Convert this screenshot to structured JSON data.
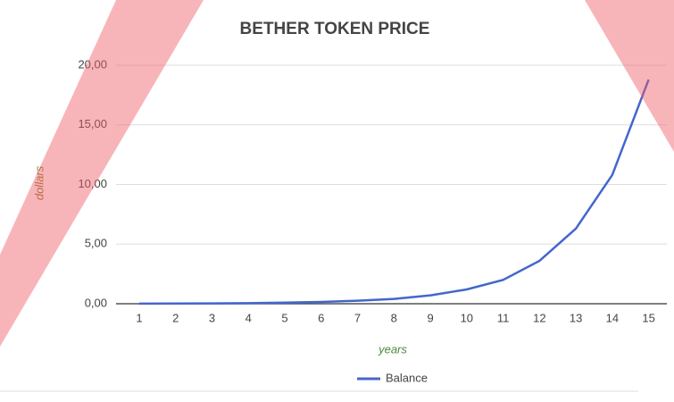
{
  "chart_data": {
    "type": "line",
    "title": "BETHER TOKEN PRICE",
    "x_label": "years",
    "y_label": "dollars",
    "categories": [
      "1",
      "2",
      "3",
      "4",
      "5",
      "6",
      "7",
      "8",
      "9",
      "10",
      "11",
      "12",
      "13",
      "14",
      "15"
    ],
    "series": [
      {
        "name": "Balance",
        "color": "#4466cc",
        "values": [
          0.01,
          0.02,
          0.03,
          0.05,
          0.09,
          0.15,
          0.25,
          0.4,
          0.7,
          1.2,
          2.0,
          3.6,
          6.3,
          10.8,
          18.8
        ]
      }
    ],
    "ylim": [
      0,
      20
    ],
    "yticks": [
      {
        "value": 0,
        "label": "0,00"
      },
      {
        "value": 5,
        "label": "5,00"
      },
      {
        "value": 10,
        "label": "10,00"
      },
      {
        "value": 15,
        "label": "15,00"
      },
      {
        "value": 20,
        "label": "20,00"
      }
    ],
    "grid": true,
    "legend": "bottom"
  }
}
